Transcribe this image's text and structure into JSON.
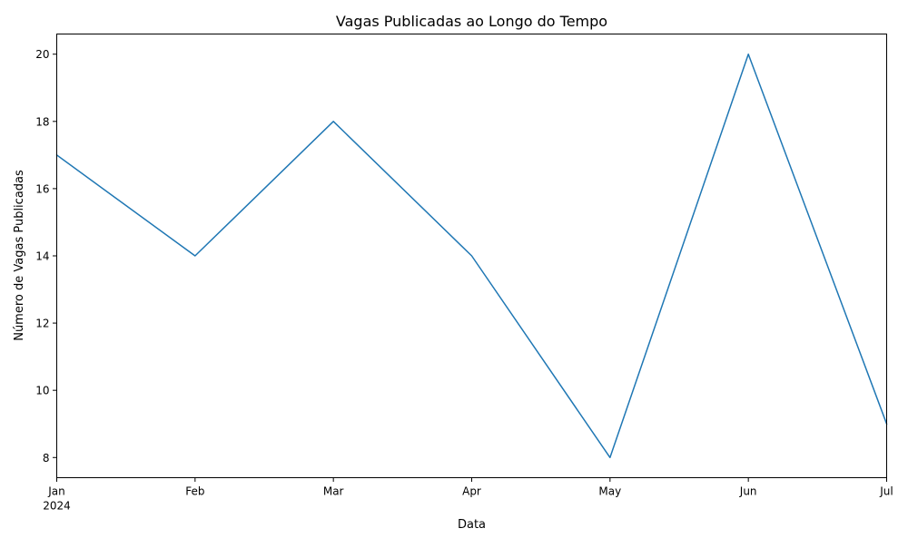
{
  "chart_data": {
    "type": "line",
    "title": "Vagas Publicadas ao Longo do Tempo",
    "xlabel": "Data",
    "ylabel": "Número de Vagas Publicadas",
    "x": [
      "2024-01",
      "2024-02",
      "2024-03",
      "2024-04",
      "2024-05",
      "2024-06",
      "2024-07"
    ],
    "x_tick_labels": [
      "Jan",
      "Feb",
      "Mar",
      "Apr",
      "May",
      "Jun",
      "Jul"
    ],
    "x_tick_sublabel": "2024",
    "series": [
      {
        "values": [
          17,
          14,
          18,
          14,
          8,
          20,
          9
        ],
        "color": "#1f77b4"
      }
    ],
    "y_ticks": [
      8,
      10,
      12,
      14,
      16,
      18,
      20
    ],
    "ylim": [
      7.4,
      20.6
    ],
    "xlim": [
      "2024-01",
      "2024-07"
    ],
    "grid": false,
    "legend": "none"
  }
}
